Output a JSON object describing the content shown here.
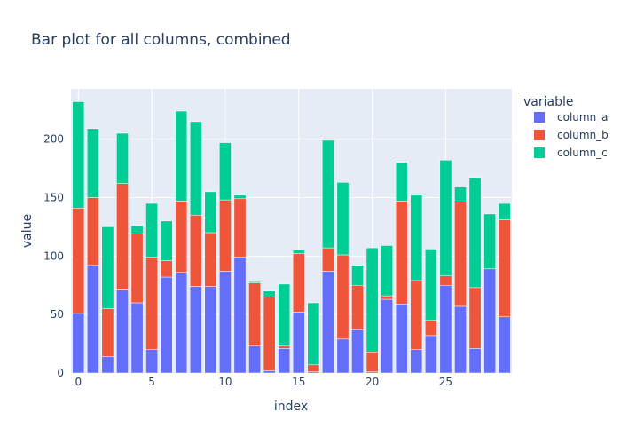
{
  "chart_data": {
    "type": "bar",
    "stacked": true,
    "title": "Bar plot for all columns, combined",
    "xlabel": "index",
    "ylabel": "value",
    "x": [
      0,
      1,
      2,
      3,
      4,
      5,
      6,
      7,
      8,
      9,
      10,
      11,
      12,
      13,
      14,
      15,
      16,
      17,
      18,
      19,
      20,
      21,
      22,
      23,
      24,
      25,
      26,
      27,
      28,
      29
    ],
    "xticks": [
      0,
      5,
      10,
      15,
      20,
      25
    ],
    "yticks": [
      0,
      50,
      100,
      150,
      200
    ],
    "xlim": [
      -0.5,
      29.5
    ],
    "ylim": [
      0,
      243
    ],
    "grid": true,
    "legend": {
      "title": "variable",
      "placement": "top-right"
    },
    "series": [
      {
        "name": "column_a",
        "color": "#636efa",
        "values": [
          51,
          92,
          14,
          71,
          60,
          20,
          82,
          86,
          74,
          74,
          87,
          99,
          23,
          2,
          21,
          52,
          1,
          87,
          29,
          37,
          1,
          63,
          59,
          20,
          32,
          75,
          57,
          21,
          89,
          48
        ]
      },
      {
        "name": "column_b",
        "color": "#ef553b",
        "values": [
          90,
          58,
          41,
          91,
          59,
          79,
          14,
          61,
          61,
          46,
          61,
          50,
          54,
          63,
          2,
          50,
          6,
          20,
          72,
          38,
          17,
          3,
          88,
          59,
          13,
          8,
          89,
          52,
          0,
          83
        ]
      },
      {
        "name": "column_c",
        "color": "#00cc96",
        "values": [
          91,
          59,
          70,
          43,
          7,
          46,
          34,
          77,
          80,
          35,
          49,
          3,
          1,
          5,
          53,
          3,
          53,
          92,
          62,
          17,
          89,
          43,
          33,
          73,
          61,
          99,
          13,
          94,
          47,
          14
        ]
      }
    ]
  }
}
